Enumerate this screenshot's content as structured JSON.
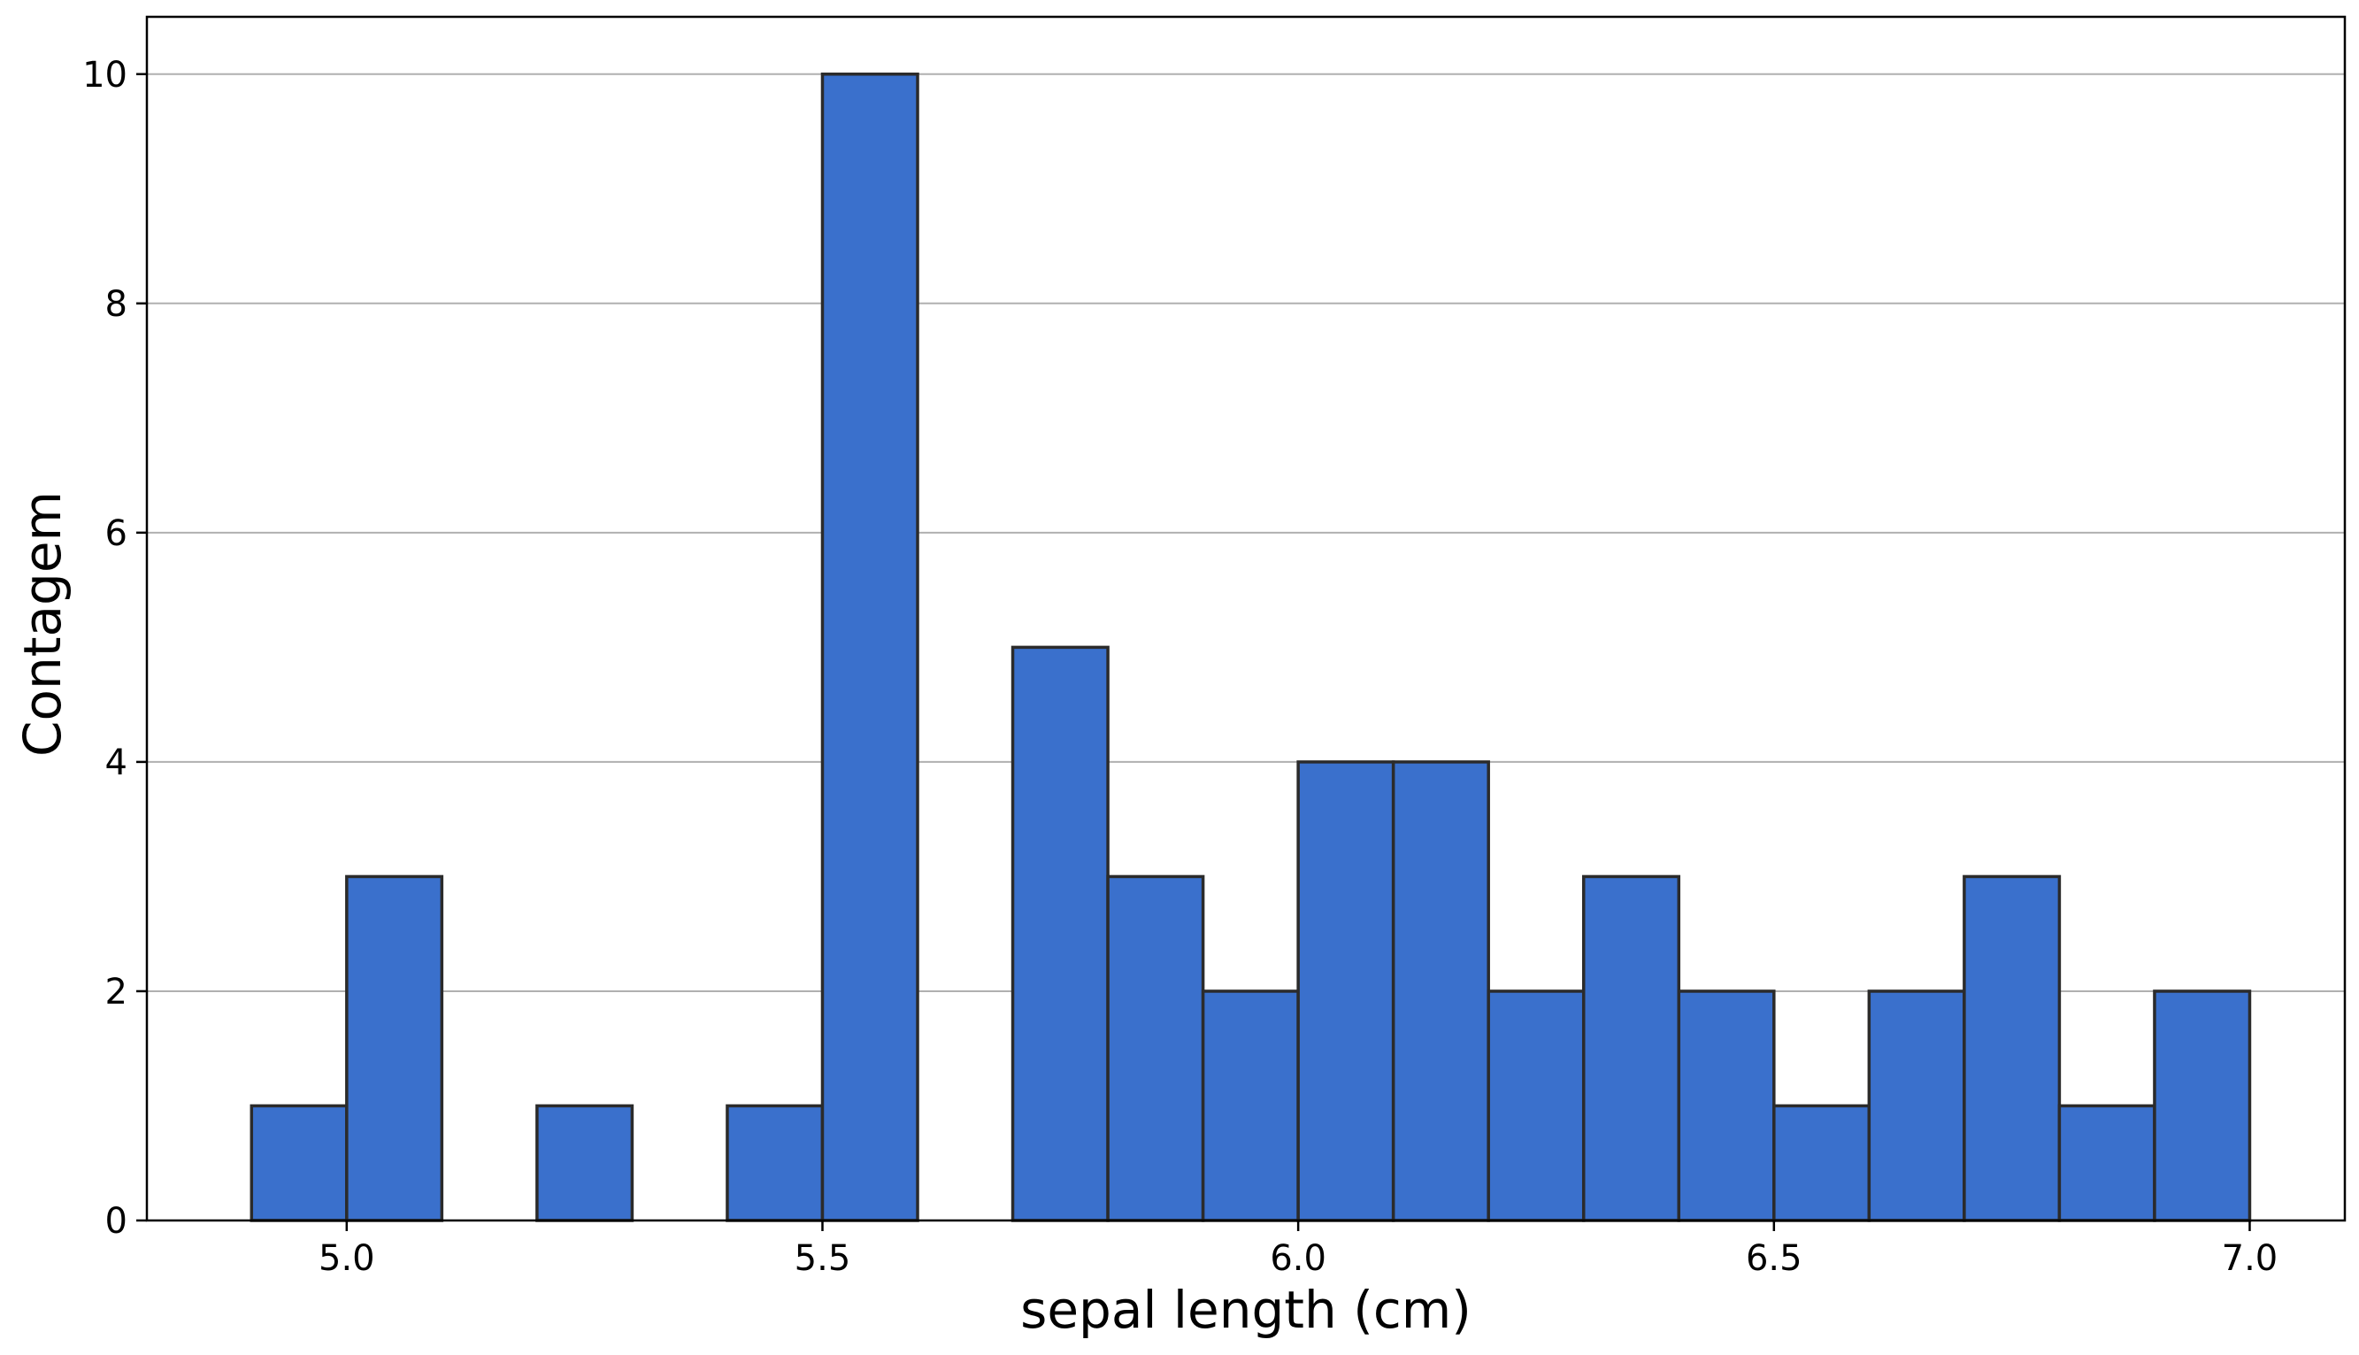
{
  "chart_data": {
    "type": "bar",
    "title": "",
    "xlabel": "sepal length (cm)",
    "ylabel": "Contagem",
    "xlim": [
      4.79,
      7.1
    ],
    "ylim": [
      0,
      10.5
    ],
    "bin_edges": [
      4.9,
      5.0,
      5.1,
      5.2,
      5.3,
      5.4,
      5.5,
      5.6,
      5.7,
      5.8,
      5.9,
      6.0,
      6.1,
      6.2,
      6.3,
      6.4,
      6.5,
      6.6,
      6.7,
      6.8,
      6.9,
      7.0
    ],
    "values": [
      1,
      3,
      0,
      1,
      0,
      1,
      10,
      0,
      5,
      3,
      2,
      4,
      4,
      2,
      3,
      2,
      1,
      2,
      3,
      1,
      2
    ],
    "x_ticks": [
      5.0,
      5.5,
      6.0,
      6.5,
      7.0
    ],
    "x_tick_labels": [
      "5.0",
      "5.5",
      "6.0",
      "6.5",
      "7.0"
    ],
    "y_ticks": [
      0,
      2,
      4,
      6,
      8,
      10
    ],
    "y_tick_labels": [
      "0",
      "2",
      "4",
      "6",
      "8",
      "10"
    ],
    "grid": "y",
    "bar_color": "#3a70cc",
    "edge_color": "#2b2b2b",
    "grid_color": "#b0b0b0"
  }
}
